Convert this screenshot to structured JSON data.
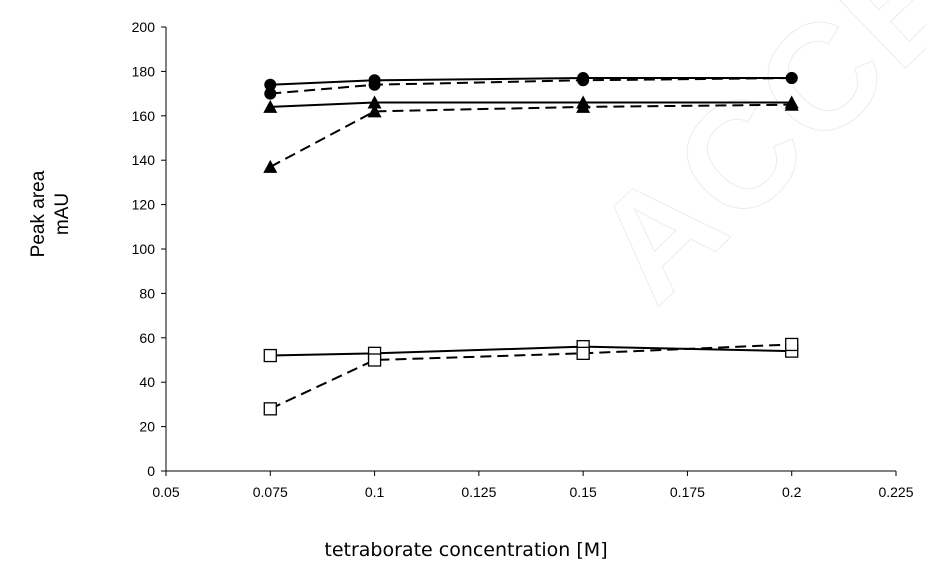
{
  "watermark_text": "ACCEPTED MANUSCRIPT",
  "chart_data": {
    "type": "line",
    "title": "",
    "xlabel": "tetraborate concentration [M]",
    "ylabel": [
      "Peak area",
      "mAU"
    ],
    "xlim": [
      0.05,
      0.225
    ],
    "ylim": [
      0,
      200
    ],
    "xticks": [
      0.05,
      0.075,
      0.1,
      0.125,
      0.15,
      0.175,
      0.2,
      0.225
    ],
    "xtick_labels": [
      "0.05",
      "0.075",
      "0.1",
      "0.125",
      "0.15",
      "0.175",
      "0.2",
      "0.225"
    ],
    "yticks": [
      0,
      20,
      40,
      60,
      80,
      100,
      120,
      140,
      160,
      180,
      200
    ],
    "ytick_labels": [
      "0",
      "20",
      "40",
      "60",
      "80",
      "100",
      "120",
      "140",
      "160",
      "180",
      "200"
    ],
    "grid": false,
    "legend": "none",
    "series": [
      {
        "marker": "circle-filled",
        "line": "solid",
        "color": "#000000",
        "x": [
          0.075,
          0.1,
          0.15,
          0.2
        ],
        "y": [
          174,
          176,
          177,
          177
        ]
      },
      {
        "marker": "circle-filled",
        "line": "dashed",
        "color": "#000000",
        "x": [
          0.075,
          0.1,
          0.15,
          0.2
        ],
        "y": [
          170,
          174,
          176,
          177
        ]
      },
      {
        "marker": "triangle-filled",
        "line": "solid",
        "color": "#000000",
        "x": [
          0.075,
          0.1,
          0.15,
          0.2
        ],
        "y": [
          164,
          166,
          166,
          166
        ]
      },
      {
        "marker": "triangle-filled",
        "line": "dashed",
        "color": "#000000",
        "x": [
          0.075,
          0.1,
          0.15,
          0.2
        ],
        "y": [
          137,
          162,
          164,
          165
        ]
      },
      {
        "marker": "square-open",
        "line": "solid",
        "color": "#000000",
        "x": [
          0.075,
          0.1,
          0.15,
          0.2
        ],
        "y": [
          52,
          53,
          56,
          54
        ]
      },
      {
        "marker": "square-open",
        "line": "dashed",
        "color": "#000000",
        "x": [
          0.075,
          0.1,
          0.15,
          0.2
        ],
        "y": [
          28,
          50,
          53,
          57
        ]
      }
    ]
  }
}
